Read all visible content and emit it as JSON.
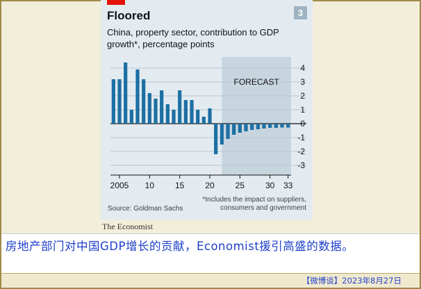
{
  "chart_number": "3",
  "publisher": "The Economist",
  "caption": "房地产部门对中国GDP增长的贡献，Economist援引高盛的数据。",
  "footer": "【微博谈】2023年8月27日",
  "colors": {
    "bar": "#1d6fa3",
    "forecast_shade": "#c7d5df",
    "accent_red": "#e3120b",
    "background": "#e3ebf1",
    "caption_text": "#1d3fc8"
  },
  "chart_data": {
    "type": "bar",
    "title": "Floored",
    "subtitle": "China, property sector, contribution to GDP growth*, percentage points",
    "xlabel": "",
    "ylabel": "",
    "ylim": [
      -3.5,
      4.5
    ],
    "y_ticks": [
      4,
      3,
      2,
      1,
      0,
      -1,
      -2,
      -3
    ],
    "x_ticks": [
      2005,
      2010,
      2015,
      2020,
      2025,
      2030,
      2033
    ],
    "x_tick_labels": [
      "2005",
      "10",
      "15",
      "20",
      "25",
      "30",
      "33"
    ],
    "x": [
      2004.5,
      2005,
      2005.5,
      2006,
      2006.5,
      2007,
      2007.5,
      2008,
      2008.5,
      2009,
      2009.5,
      2010,
      2010.5,
      2011,
      2011.5,
      2012,
      2012.5,
      2013,
      2013.5,
      2014,
      2014.5,
      2015,
      2015.5,
      2016,
      2016.5,
      2017,
      2017.5,
      2018,
      2018.5,
      2019,
      2019.5,
      2020,
      2020.5,
      2021,
      2021.5,
      2022,
      2022.5,
      2023,
      2023.5,
      2024,
      2024.5,
      2025,
      2025.5,
      2026,
      2026.5,
      2027,
      2027.5,
      2028,
      2028.5,
      2029,
      2029.5,
      2030,
      2030.5,
      2031,
      2031.5,
      2032,
      2032.5,
      2033
    ],
    "series": [
      {
        "values": [
          3.2,
          3.2,
          3.2,
          3.2,
          4.4,
          4.4,
          1.0,
          1.0,
          3.9,
          3.9,
          3.2,
          3.2,
          2.2,
          2.2,
          1.8,
          1.8,
          2.4,
          2.4,
          1.4,
          1.4,
          1.0,
          1.0,
          2.4,
          2.4,
          1.7,
          1.7,
          1.7,
          1.7,
          1.0,
          1.0,
          0.5,
          0.5,
          1.1,
          1.1,
          -2.2,
          -2.2,
          -1.5,
          -1.5,
          -1.1,
          -1.1,
          -0.8,
          -0.8,
          -0.65,
          -0.65,
          -0.55,
          -0.55,
          -0.45,
          -0.45,
          -0.4,
          -0.4,
          -0.35,
          -0.35,
          -0.3,
          -0.3,
          -0.3,
          -0.3,
          -0.28,
          -0.28
        ]
      }
    ],
    "bar_years": [
      2004,
      2005,
      2006,
      2007,
      2008,
      2009,
      2010,
      2011,
      2012,
      2013,
      2014,
      2015,
      2016,
      2017,
      2018,
      2019,
      2020,
      2021,
      2022,
      2023,
      2024,
      2025,
      2026,
      2027,
      2028,
      2029,
      2030,
      2031,
      2032,
      2033
    ],
    "bar_values": [
      3.2,
      3.2,
      4.4,
      1.0,
      3.9,
      3.2,
      2.2,
      1.8,
      2.4,
      1.4,
      1.0,
      2.4,
      1.7,
      1.7,
      1.0,
      0.5,
      1.1,
      -2.2,
      -1.5,
      -1.1,
      -0.8,
      -0.65,
      -0.55,
      -0.45,
      -0.4,
      -0.35,
      -0.3,
      -0.3,
      -0.28,
      -0.28
    ],
    "forecast_start": 2022,
    "forecast_label": "FORECAST",
    "source": "Source: Goldman Sachs",
    "footnote": "*Includes the impact on suppliers, consumers and government",
    "grid": true
  }
}
